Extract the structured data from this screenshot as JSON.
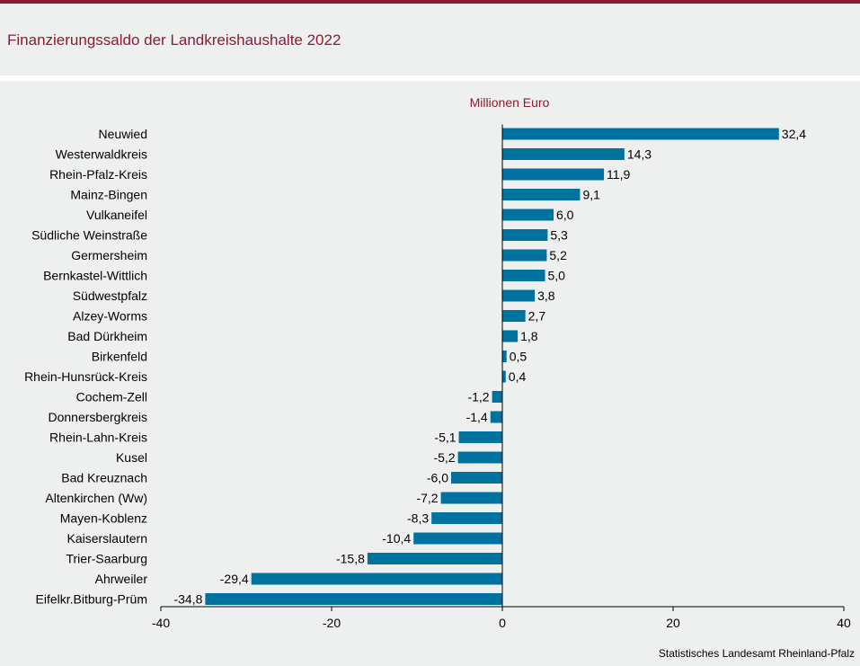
{
  "title": "Finanzierungssaldo der Landkreishaushalte 2022",
  "source": "Statistisches Landesamt Rheinland-Pfalz",
  "colors": {
    "accent": "#8b1c31",
    "bar": "#00729f"
  },
  "chart_data": {
    "type": "bar",
    "orientation": "horizontal",
    "unit_label": "Millionen Euro",
    "categories": [
      "Neuwied",
      "Westerwaldkreis",
      "Rhein-Pfalz-Kreis",
      "Mainz-Bingen",
      "Vulkaneifel",
      "Südliche Weinstraße",
      "Germersheim",
      "Bernkastel-Wittlich",
      "Südwestpfalz",
      "Alzey-Worms",
      "Bad Dürkheim",
      "Birkenfeld",
      "Rhein-Hunsrück-Kreis",
      "Cochem-Zell",
      "Donnersbergkreis",
      "Rhein-Lahn-Kreis",
      "Kusel",
      "Bad Kreuznach",
      "Altenkirchen (Ww)",
      "Mayen-Koblenz",
      "Kaiserslautern",
      "Trier-Saarburg",
      "Ahrweiler",
      "Eifelkr.Bitburg-Prüm"
    ],
    "values": [
      32.4,
      14.3,
      11.9,
      9.1,
      6.0,
      5.3,
      5.2,
      5.0,
      3.8,
      2.7,
      1.8,
      0.5,
      0.4,
      -1.2,
      -1.4,
      -5.1,
      -5.2,
      -6.0,
      -7.2,
      -8.3,
      -10.4,
      -15.8,
      -29.4,
      -34.8
    ],
    "value_labels": [
      "32,4",
      "14,3",
      "11,9",
      "9,1",
      "6,0",
      "5,3",
      "5,2",
      "5,0",
      "3,8",
      "2,7",
      "1,8",
      "0,5",
      "0,4",
      "-1,2",
      "-1,4",
      "-5,1",
      "-5,2",
      "-6,0",
      "-7,2",
      "-8,3",
      "-10,4",
      "-15,8",
      "-29,4",
      "-34,8"
    ],
    "xlim": [
      -40,
      40
    ],
    "xticks": [
      -40,
      -20,
      0,
      20,
      40
    ],
    "xtick_labels": [
      "-40",
      "-20",
      "0",
      "20",
      "40"
    ],
    "grid": false,
    "legend": "none"
  }
}
